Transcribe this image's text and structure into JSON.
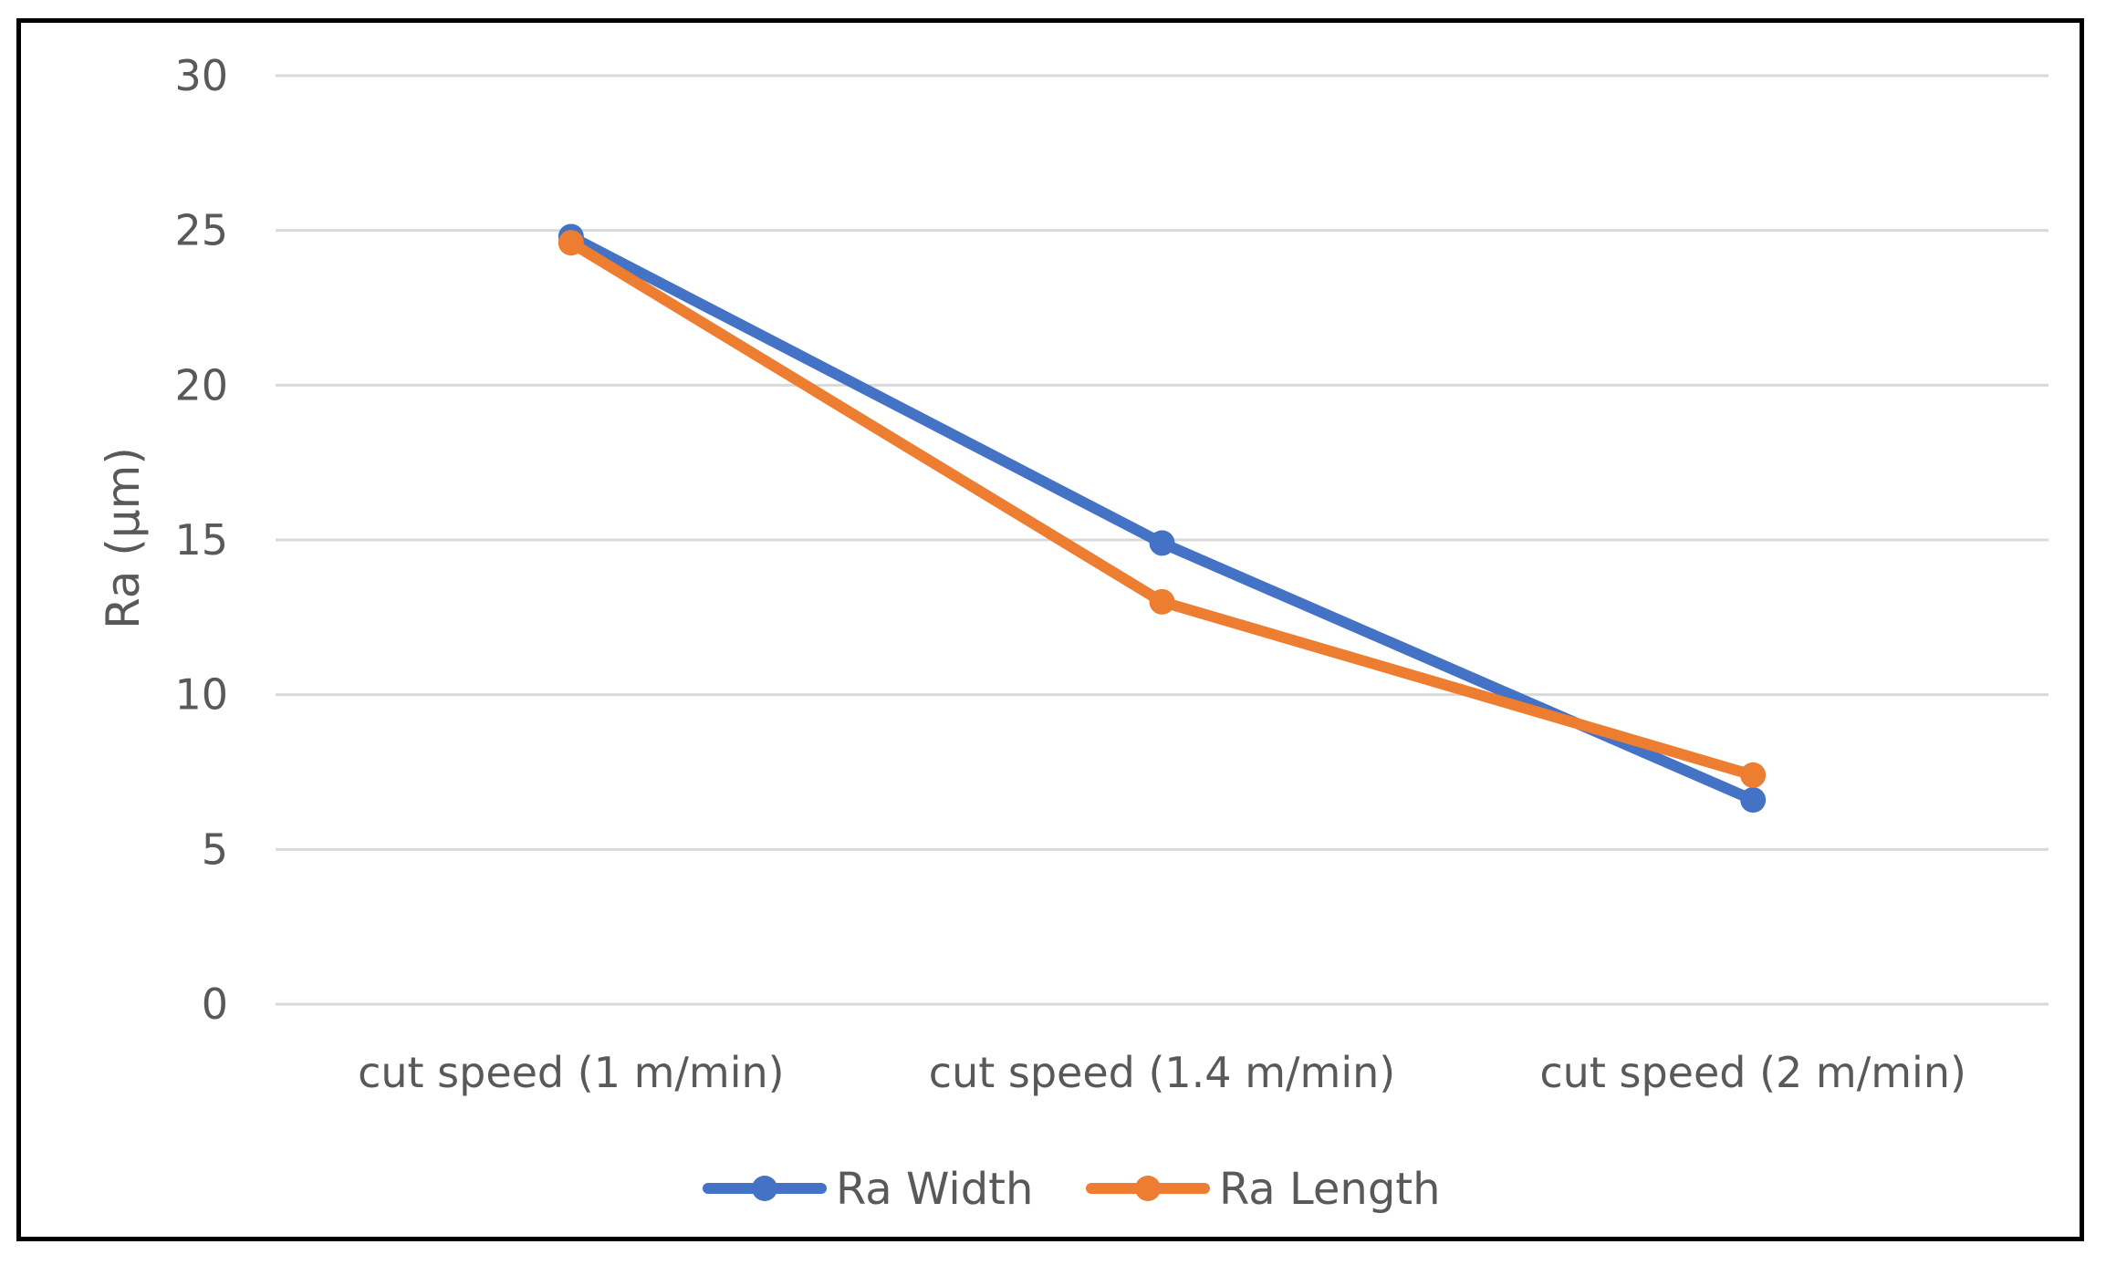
{
  "chart_data": {
    "type": "line",
    "title": "",
    "xlabel": "",
    "ylabel": "Ra (µm)",
    "ylim": [
      0,
      30
    ],
    "yticks": [
      0,
      5,
      10,
      15,
      20,
      25,
      30
    ],
    "grid": true,
    "legend_position": "bottom",
    "categories": [
      "cut speed (1 m/min)",
      "cut speed (1.4 m/min)",
      "cut speed (2 m/min)"
    ],
    "series": [
      {
        "name": "Ra Width",
        "color": "#4472C4",
        "values": [
          24.8,
          14.9,
          6.6
        ]
      },
      {
        "name": "Ra Length",
        "color": "#ED7D31",
        "values": [
          24.6,
          13.0,
          7.4
        ]
      }
    ]
  }
}
